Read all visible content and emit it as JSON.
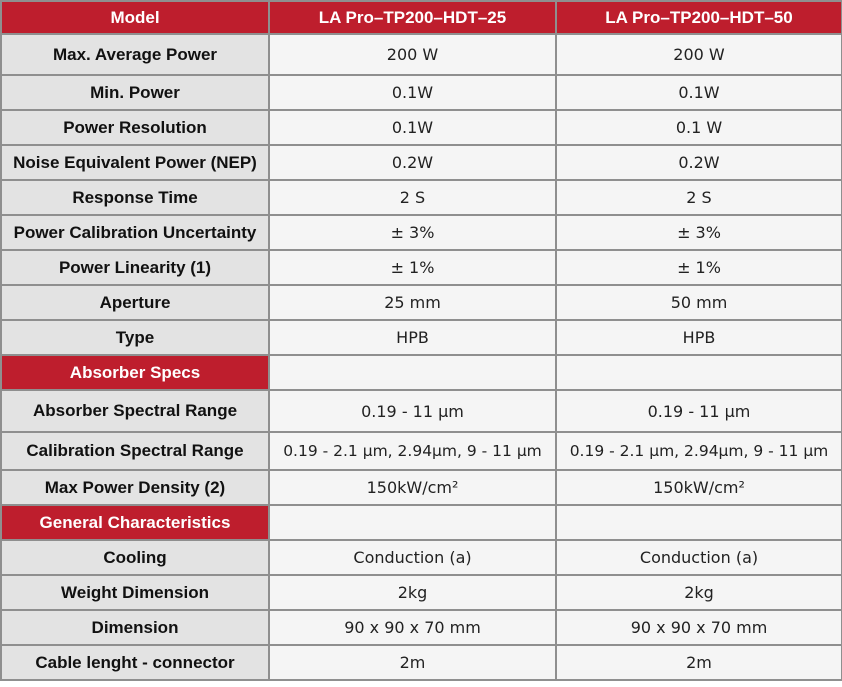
{
  "header": {
    "col0": "Model",
    "col1": "LA Pro–TP200–HDT–25",
    "col2": "LA Pro–TP200–HDT–50"
  },
  "rows": [
    {
      "label": "Max. Average Power",
      "v1": "200 W",
      "v2": "200 W"
    },
    {
      "label": "Min. Power",
      "v1": "0.1W",
      "v2": "0.1W"
    },
    {
      "label": "Power Resolution",
      "v1": "0.1W",
      "v2": "0.1 W"
    },
    {
      "label": "Noise Equivalent Power (NEP)",
      "v1": "0.2W",
      "v2": "0.2W"
    },
    {
      "label": "Response Time",
      "v1": "2 S",
      "v2": "2 S"
    },
    {
      "label": "Power Calibration Uncertainty",
      "v1": "± 3%",
      "v2": "± 3%"
    },
    {
      "label": "Power Linearity (1)",
      "v1": "± 1%",
      "v2": "± 1%"
    },
    {
      "label": "Aperture",
      "v1": "25 mm",
      "v2": "50 mm"
    },
    {
      "label": "Type",
      "v1": "HPB",
      "v2": "HPB"
    },
    {
      "section": "Absorber Specs"
    },
    {
      "label": "Absorber Spectral Range",
      "v1": "0.19 - 11 µm",
      "v2": "0.19 - 11 µm"
    },
    {
      "label": "Calibration Spectral Range",
      "v1": "0.19 - 2.1 µm, 2.94µm, 9 - 11 µm",
      "v2": "0.19 - 2.1 µm, 2.94µm, 9 - 11 µm"
    },
    {
      "label": "Max Power Density (2)",
      "v1": "150kW/cm²",
      "v2": "150kW/cm²"
    },
    {
      "section": "General Characteristics"
    },
    {
      "label": "Cooling",
      "v1": "Conduction (a)",
      "v2": "Conduction (a)"
    },
    {
      "label": "Weight Dimension",
      "v1": "2kg",
      "v2": "2kg"
    },
    {
      "label": "Dimension",
      "v1": "90 x 90 x 70 mm",
      "v2": "90 x 90 x 70 mm"
    },
    {
      "label": "Cable lenght - connector",
      "v1": "2m",
      "v2": "2m"
    }
  ],
  "colors": {
    "accent_red": "#be1e2d",
    "label_bg": "#e3e3e3",
    "value_bg": "#f5f5f5",
    "border": "#8f8f8f"
  }
}
